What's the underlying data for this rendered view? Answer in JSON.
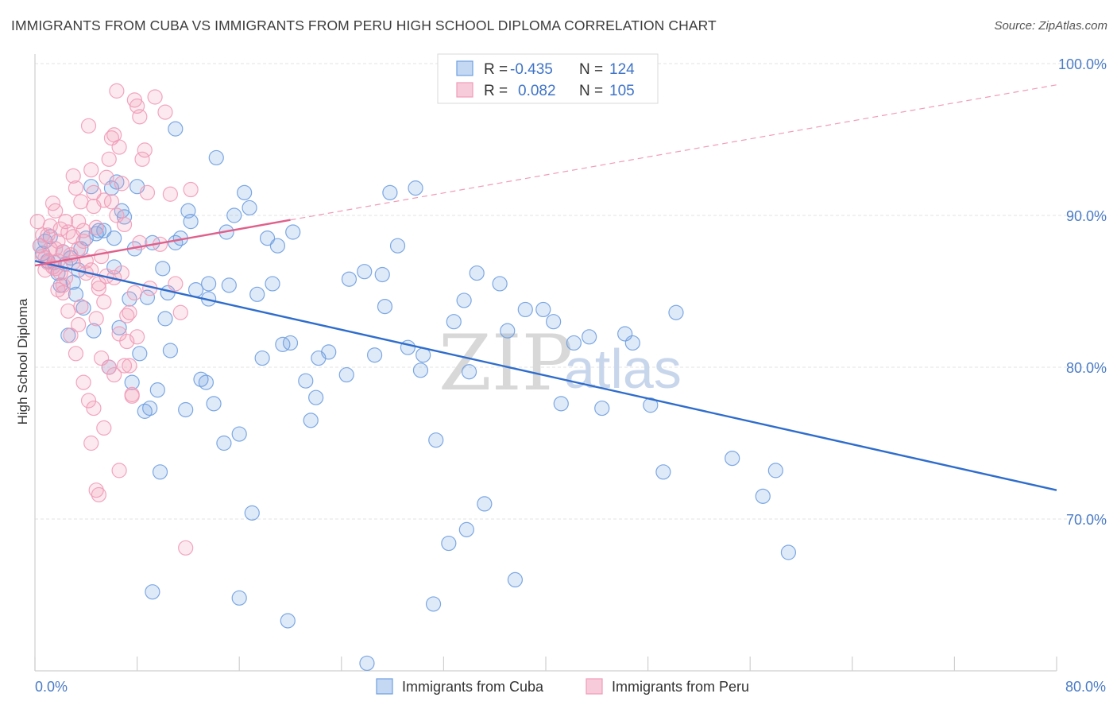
{
  "title": "IMMIGRANTS FROM CUBA VS IMMIGRANTS FROM PERU HIGH SCHOOL DIPLOMA CORRELATION CHART",
  "source": "Source: ZipAtlas.com",
  "watermark": {
    "zip": "ZIP",
    "atlas": "atlas"
  },
  "colors": {
    "cuba": "#6f9fe0",
    "cuba_line": "#2f6dcc",
    "peru": "#f19bb7",
    "peru_line": "#e0608c",
    "axis_text": "#4a7cc6"
  },
  "legend": {
    "r_label": "R =",
    "n_label": "N =",
    "rows": [
      {
        "series": "cuba",
        "r": "-0.435",
        "n": "124"
      },
      {
        "series": "peru",
        "r": "0.082",
        "n": "105"
      }
    ]
  },
  "bottom_legend": [
    "Immigrants from Cuba",
    "Immigrants from Peru"
  ],
  "chart_data": {
    "type": "scatter",
    "title": "IMMIGRANTS FROM CUBA VS IMMIGRANTS FROM PERU HIGH SCHOOL DIPLOMA CORRELATION CHART",
    "xlabel": "",
    "ylabel": "High School Diploma",
    "xlim": [
      0,
      80
    ],
    "ylim": [
      60,
      100
    ],
    "x_tick_labels": [
      "0.0%",
      "80.0%"
    ],
    "y_ticks": [
      70,
      80,
      90,
      100
    ],
    "y_tick_labels": [
      "70.0%",
      "80.0%",
      "90.0%",
      "100.0%"
    ],
    "grid": true,
    "legend_position": "top-center",
    "series": [
      {
        "name": "Immigrants from Cuba",
        "color": "#6f9fe0",
        "trend": {
          "x": [
            0,
            80
          ],
          "y": [
            87.0,
            71.9
          ]
        },
        "points": [
          [
            0.4,
            88.0
          ],
          [
            0.6,
            87.5
          ],
          [
            0.8,
            88.3
          ],
          [
            1.0,
            87.0
          ],
          [
            1.2,
            88.6
          ],
          [
            1.5,
            86.9
          ],
          [
            1.8,
            86.2
          ],
          [
            2.0,
            85.4
          ],
          [
            2.2,
            87.6
          ],
          [
            2.4,
            86.8
          ],
          [
            2.6,
            82.1
          ],
          [
            2.8,
            87.2
          ],
          [
            3.0,
            85.6
          ],
          [
            3.2,
            84.8
          ],
          [
            3.4,
            86.4
          ],
          [
            3.6,
            87.8
          ],
          [
            3.8,
            83.9
          ],
          [
            4.0,
            88.5
          ],
          [
            4.4,
            91.9
          ],
          [
            4.8,
            88.8
          ],
          [
            5.0,
            89.0
          ],
          [
            5.4,
            89.0
          ],
          [
            5.8,
            80.0
          ],
          [
            6.0,
            91.8
          ],
          [
            6.2,
            86.6
          ],
          [
            6.4,
            92.2
          ],
          [
            6.6,
            82.6
          ],
          [
            6.8,
            90.3
          ],
          [
            7.0,
            89.9
          ],
          [
            7.4,
            84.5
          ],
          [
            7.6,
            79.0
          ],
          [
            7.8,
            87.8
          ],
          [
            8.0,
            91.9
          ],
          [
            8.2,
            80.9
          ],
          [
            8.6,
            77.1
          ],
          [
            8.8,
            84.6
          ],
          [
            9.0,
            77.3
          ],
          [
            9.2,
            88.2
          ],
          [
            9.6,
            78.5
          ],
          [
            10.0,
            86.5
          ],
          [
            10.2,
            83.2
          ],
          [
            10.4,
            84.9
          ],
          [
            10.6,
            81.1
          ],
          [
            11.0,
            95.7
          ],
          [
            11.4,
            88.5
          ],
          [
            11.8,
            77.2
          ],
          [
            12.0,
            90.3
          ],
          [
            12.2,
            89.6
          ],
          [
            12.6,
            85.1
          ],
          [
            13.0,
            79.2
          ],
          [
            13.4,
            79.0
          ],
          [
            13.6,
            85.5
          ],
          [
            14.0,
            77.6
          ],
          [
            14.2,
            93.8
          ],
          [
            14.8,
            75.0
          ],
          [
            15.0,
            88.9
          ],
          [
            15.2,
            85.4
          ],
          [
            15.6,
            90.0
          ],
          [
            16.0,
            75.6
          ],
          [
            16.4,
            91.5
          ],
          [
            16.8,
            90.5
          ],
          [
            17.4,
            84.8
          ],
          [
            17.8,
            80.6
          ],
          [
            18.2,
            88.5
          ],
          [
            18.6,
            85.5
          ],
          [
            19.0,
            88.0
          ],
          [
            19.4,
            81.5
          ],
          [
            20.0,
            81.6
          ],
          [
            20.2,
            88.9
          ],
          [
            21.2,
            79.1
          ],
          [
            21.6,
            76.5
          ],
          [
            22.2,
            80.6
          ],
          [
            23.0,
            81.0
          ],
          [
            24.4,
            79.5
          ],
          [
            24.6,
            85.8
          ],
          [
            25.8,
            86.3
          ],
          [
            26.6,
            80.8
          ],
          [
            27.2,
            86.1
          ],
          [
            27.4,
            84.0
          ],
          [
            27.8,
            91.5
          ],
          [
            28.4,
            88.0
          ],
          [
            29.2,
            81.3
          ],
          [
            29.8,
            91.8
          ],
          [
            30.2,
            79.8
          ],
          [
            30.4,
            80.8
          ],
          [
            31.4,
            75.2
          ],
          [
            32.4,
            68.4
          ],
          [
            32.8,
            83.0
          ],
          [
            33.8,
            69.3
          ],
          [
            34.0,
            79.7
          ],
          [
            33.6,
            84.4
          ],
          [
            34.6,
            86.2
          ],
          [
            35.2,
            71.0
          ],
          [
            36.4,
            85.5
          ],
          [
            37.0,
            82.4
          ],
          [
            38.4,
            83.8
          ],
          [
            39.8,
            83.8
          ],
          [
            40.6,
            83.0
          ],
          [
            41.2,
            77.6
          ],
          [
            42.2,
            81.6
          ],
          [
            43.4,
            82.0
          ],
          [
            44.4,
            77.3
          ],
          [
            46.2,
            82.2
          ],
          [
            46.8,
            81.6
          ],
          [
            48.2,
            77.5
          ],
          [
            49.2,
            73.1
          ],
          [
            50.2,
            83.6
          ],
          [
            54.6,
            74.0
          ],
          [
            57.0,
            71.5
          ],
          [
            58.0,
            73.2
          ],
          [
            59.0,
            67.8
          ],
          [
            37.6,
            66.0
          ],
          [
            31.2,
            64.4
          ],
          [
            26.0,
            60.5
          ],
          [
            19.8,
            63.3
          ],
          [
            16.0,
            64.8
          ],
          [
            9.2,
            65.2
          ],
          [
            9.8,
            73.1
          ],
          [
            17.0,
            70.4
          ],
          [
            22.0,
            78.0
          ],
          [
            13.6,
            84.5
          ],
          [
            11.0,
            88.2
          ],
          [
            6.2,
            88.5
          ],
          [
            4.6,
            82.4
          ]
        ]
      },
      {
        "name": "Immigrants from Peru",
        "color": "#f19bb7",
        "trend": {
          "x": [
            0,
            20
          ],
          "y": [
            86.7,
            89.7
          ],
          "dashed_extension": {
            "x": [
              20,
              80
            ],
            "y": [
              89.7,
              98.6
            ]
          }
        },
        "points": [
          [
            0.2,
            89.6
          ],
          [
            0.4,
            88.0
          ],
          [
            0.6,
            87.3
          ],
          [
            0.8,
            86.4
          ],
          [
            1.0,
            88.7
          ],
          [
            1.2,
            87.8
          ],
          [
            1.4,
            90.8
          ],
          [
            1.6,
            90.3
          ],
          [
            1.8,
            85.1
          ],
          [
            2.0,
            89.1
          ],
          [
            2.2,
            87.6
          ],
          [
            2.4,
            85.9
          ],
          [
            2.6,
            83.7
          ],
          [
            2.8,
            82.1
          ],
          [
            3.0,
            92.6
          ],
          [
            3.2,
            91.8
          ],
          [
            3.4,
            89.6
          ],
          [
            3.6,
            90.9
          ],
          [
            3.8,
            88.3
          ],
          [
            4.0,
            86.2
          ],
          [
            4.2,
            95.9
          ],
          [
            4.4,
            93.0
          ],
          [
            4.6,
            91.5
          ],
          [
            4.8,
            89.2
          ],
          [
            5.0,
            85.2
          ],
          [
            5.2,
            87.3
          ],
          [
            5.4,
            84.3
          ],
          [
            5.6,
            92.5
          ],
          [
            5.8,
            93.7
          ],
          [
            6.0,
            95.1
          ],
          [
            6.2,
            95.3
          ],
          [
            6.4,
            98.2
          ],
          [
            6.6,
            94.5
          ],
          [
            6.8,
            92.1
          ],
          [
            7.0,
            89.4
          ],
          [
            7.2,
            83.4
          ],
          [
            7.4,
            80.1
          ],
          [
            7.6,
            78.1
          ],
          [
            7.8,
            97.6
          ],
          [
            8.0,
            97.2
          ],
          [
            8.2,
            96.5
          ],
          [
            8.4,
            93.7
          ],
          [
            8.6,
            94.3
          ],
          [
            8.8,
            91.5
          ],
          [
            9.0,
            85.2
          ],
          [
            9.4,
            97.8
          ],
          [
            9.8,
            88.1
          ],
          [
            10.2,
            96.8
          ],
          [
            10.6,
            91.4
          ],
          [
            11.0,
            85.5
          ],
          [
            11.4,
            83.6
          ],
          [
            11.8,
            68.1
          ],
          [
            12.2,
            91.7
          ],
          [
            1.4,
            86.6
          ],
          [
            1.6,
            87.8
          ],
          [
            1.8,
            87.0
          ],
          [
            2.0,
            86.2
          ],
          [
            2.2,
            84.9
          ],
          [
            2.6,
            88.9
          ],
          [
            3.0,
            86.9
          ],
          [
            3.4,
            82.8
          ],
          [
            3.8,
            79.0
          ],
          [
            4.2,
            77.8
          ],
          [
            4.4,
            75.0
          ],
          [
            4.6,
            77.3
          ],
          [
            4.8,
            71.9
          ],
          [
            5.0,
            71.6
          ],
          [
            5.4,
            76.0
          ],
          [
            5.8,
            80.0
          ],
          [
            6.2,
            79.5
          ],
          [
            6.6,
            73.2
          ],
          [
            7.2,
            81.7
          ],
          [
            7.6,
            78.2
          ],
          [
            7.8,
            84.9
          ],
          [
            8.2,
            88.2
          ],
          [
            6.4,
            90.0
          ],
          [
            6.0,
            90.9
          ],
          [
            5.4,
            91.0
          ],
          [
            4.6,
            90.6
          ],
          [
            3.8,
            89.0
          ],
          [
            3.0,
            88.6
          ],
          [
            2.4,
            89.6
          ],
          [
            1.8,
            88.3
          ],
          [
            1.2,
            89.3
          ],
          [
            0.6,
            88.7
          ],
          [
            0.8,
            87.2
          ],
          [
            1.0,
            86.9
          ],
          [
            1.6,
            86.5
          ],
          [
            2.8,
            87.4
          ],
          [
            3.4,
            87.8
          ],
          [
            4.0,
            87.0
          ],
          [
            4.4,
            86.4
          ],
          [
            5.0,
            85.5
          ],
          [
            5.6,
            86.0
          ],
          [
            6.2,
            85.9
          ],
          [
            6.8,
            86.2
          ],
          [
            7.4,
            83.6
          ],
          [
            8.0,
            82.0
          ],
          [
            2.2,
            85.4
          ],
          [
            3.6,
            84.0
          ],
          [
            4.8,
            83.2
          ],
          [
            5.2,
            80.6
          ],
          [
            6.6,
            82.2
          ],
          [
            7.0,
            80.1
          ],
          [
            3.2,
            80.9
          ]
        ]
      }
    ]
  }
}
